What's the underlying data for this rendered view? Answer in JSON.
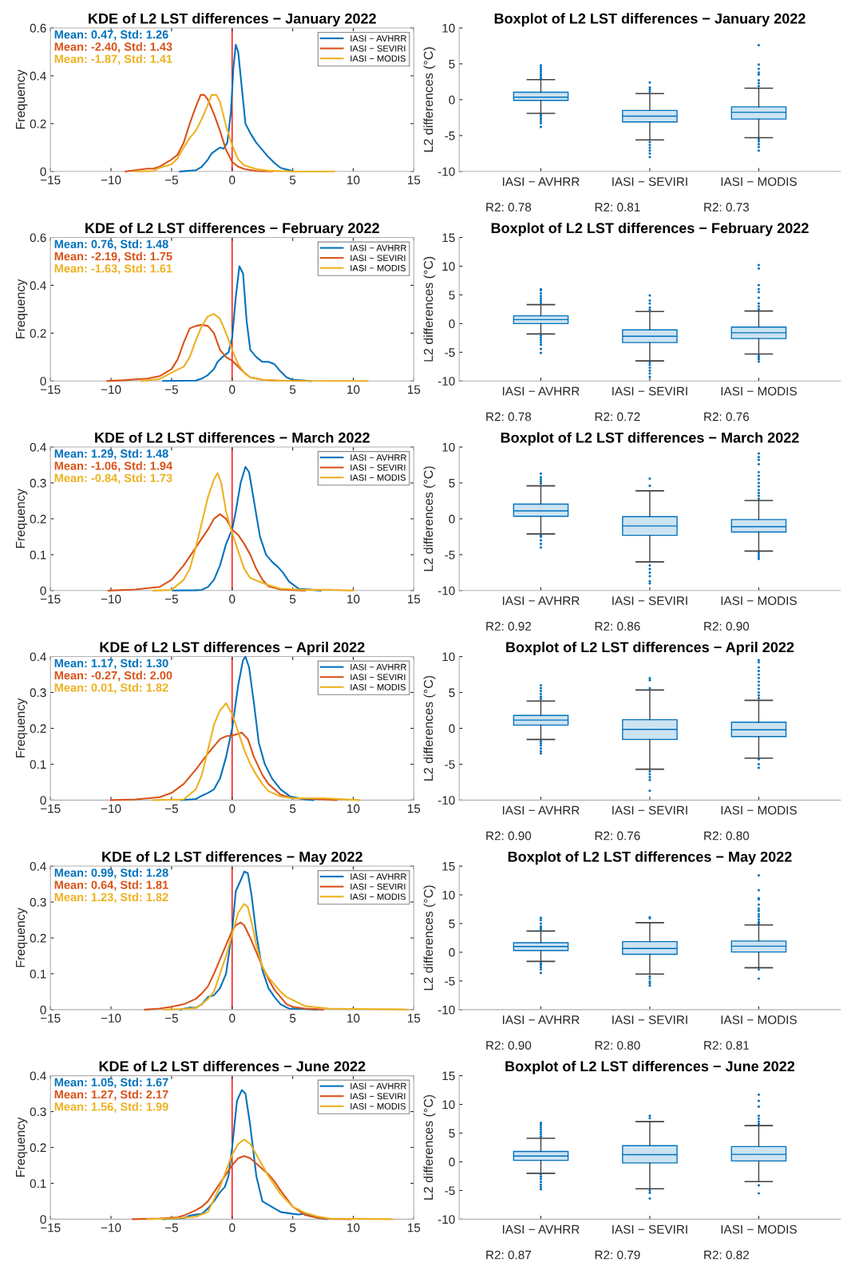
{
  "chart_data": [
    {
      "type": "line",
      "title": "KDE of L2 LST differences − January 2022",
      "ylabel": "Frequency",
      "xlim": [
        -15,
        15
      ],
      "xticks": [
        {
          "value": -15,
          "label": "−15"
        },
        {
          "value": -10,
          "label": "−10"
        },
        {
          "value": -5,
          "label": "−5"
        },
        0,
        5,
        10,
        15
      ],
      "ylim": [
        0,
        0.6
      ],
      "yticks": [
        0,
        0.2,
        0.4,
        0.6
      ],
      "legend": "top right",
      "ref_lines": [
        {
          "axis": "x",
          "value": 0,
          "color": "#ff0000"
        }
      ],
      "annotations": [
        "Mean: 0.47, Std: 1.26",
        "Mean: -2.40, Std: 1.43",
        "Mean: -1.87, Std: 1.41"
      ],
      "series": [
        {
          "name": "IASI − AVHRR",
          "color": "#0072bd",
          "x": [
            -4.3,
            -3,
            -2.5,
            -2,
            -1.7,
            -1.3,
            -1,
            -0.7,
            -0.4,
            -0.1,
            0.1,
            0.3,
            0.5,
            0.8,
            1.1,
            1.5,
            2,
            2.5,
            3,
            3.5,
            4,
            4.5,
            5
          ],
          "values": [
            0,
            0.005,
            0.02,
            0.05,
            0.075,
            0.09,
            0.1,
            0.095,
            0.12,
            0.25,
            0.43,
            0.53,
            0.5,
            0.35,
            0.2,
            0.16,
            0.12,
            0.09,
            0.06,
            0.035,
            0.015,
            0.008,
            0.002
          ]
        },
        {
          "name": "IASI − SEVIRI",
          "color": "#d95319",
          "x": [
            -8.8,
            -8,
            -7,
            -6.5,
            -6,
            -5,
            -4.5,
            -4,
            -3.5,
            -3,
            -2.6,
            -2.3,
            -2,
            -1.5,
            -1,
            -0.5,
            0,
            0.5,
            1,
            2,
            3.3
          ],
          "values": [
            0,
            0.005,
            0.012,
            0.012,
            0.02,
            0.05,
            0.07,
            0.12,
            0.2,
            0.27,
            0.32,
            0.32,
            0.3,
            0.24,
            0.17,
            0.09,
            0.04,
            0.02,
            0.01,
            0.002,
            0
          ]
        },
        {
          "name": "IASI − MODIS",
          "color": "#edb120",
          "x": [
            -8,
            -6.5,
            -6,
            -5,
            -4.5,
            -4,
            -3.5,
            -3,
            -2.5,
            -2,
            -1.7,
            -1.3,
            -1,
            -0.5,
            0,
            0.5,
            1,
            2,
            3,
            5,
            8.4
          ],
          "values": [
            0,
            0.002,
            0.015,
            0.03,
            0.055,
            0.1,
            0.14,
            0.17,
            0.22,
            0.28,
            0.32,
            0.32,
            0.29,
            0.19,
            0.11,
            0.05,
            0.025,
            0.01,
            0.003,
            0,
            0
          ]
        }
      ]
    },
    {
      "type": "box",
      "title": "Boxplot of L2 LST differences − January 2022",
      "ylabel": "L2 differences (°C)",
      "categories": [
        "IASI − AVHRR",
        "IASI − SEVIRI",
        "IASI − MODIS"
      ],
      "ylim": [
        -10,
        10
      ],
      "yticks": [
        -10,
        -5,
        0,
        5,
        10
      ],
      "annotations": [
        "R2: 0.78",
        "R2: 0.81",
        "R2: 0.73"
      ],
      "series": [
        {
          "color": "#0072bd",
          "boxes": [
            {
              "low": -1.9,
              "q1": -0.1,
              "median": 0.35,
              "q3": 1.05,
              "high": 2.8,
              "outliers": [
                3.0,
                3.3,
                3.6,
                3.9,
                4.2,
                4.5,
                4.8,
                -2.1,
                -2.4,
                -2.7,
                -3.0,
                -3.3,
                -3.8
              ]
            },
            {
              "low": -5.6,
              "q1": -3.1,
              "median": -2.3,
              "q3": -1.5,
              "high": 0.85,
              "outliers": [
                1.1,
                1.4,
                1.7,
                2.4,
                -5.9,
                -6.3,
                -6.7,
                -7.1,
                -7.5,
                -8.0
              ]
            },
            {
              "low": -5.3,
              "q1": -2.7,
              "median": -1.75,
              "q3": -1.0,
              "high": 1.6,
              "outliers": [
                1.9,
                2.3,
                2.7,
                3.5,
                3.8,
                4.3,
                4.9,
                7.6,
                -5.5,
                -5.8,
                -6.2,
                -6.6,
                -7.1
              ]
            }
          ]
        }
      ]
    },
    {
      "type": "line",
      "title": "KDE of L2 LST differences − February 2022",
      "ylabel": "Frequency",
      "xlim": [
        -15,
        15
      ],
      "xticks": [
        {
          "value": -15,
          "label": "−15"
        },
        {
          "value": -10,
          "label": "−10"
        },
        {
          "value": -5,
          "label": "−5"
        },
        0,
        5,
        10,
        15
      ],
      "ylim": [
        0,
        0.6
      ],
      "yticks": [
        0,
        0.2,
        0.4,
        0.6
      ],
      "legend": "top right",
      "ref_lines": [
        {
          "axis": "x",
          "value": 0,
          "color": "#ff0000"
        }
      ],
      "annotations": [
        "Mean: 0.76, Std: 1.48",
        "Mean: -2.19, Std: 1.75",
        "Mean: -1.63, Std: 1.61"
      ],
      "series": [
        {
          "name": "IASI − AVHRR",
          "color": "#0072bd",
          "x": [
            -5.7,
            -3,
            -2.5,
            -2,
            -1.5,
            -1.2,
            -0.8,
            -0.3,
            0,
            0.3,
            0.6,
            0.9,
            1.2,
            1.5,
            2,
            2.5,
            3,
            3.5,
            4,
            4.5,
            5,
            6.5
          ],
          "values": [
            0,
            0.002,
            0.01,
            0.025,
            0.05,
            0.08,
            0.1,
            0.12,
            0.18,
            0.35,
            0.48,
            0.45,
            0.25,
            0.13,
            0.1,
            0.08,
            0.08,
            0.07,
            0.04,
            0.015,
            0.005,
            0
          ]
        },
        {
          "name": "IASI − SEVIRI",
          "color": "#d95319",
          "x": [
            -10.3,
            -9,
            -7,
            -6,
            -5,
            -4.5,
            -4,
            -3.5,
            -3,
            -2.5,
            -2,
            -1.5,
            -1,
            -0.5,
            0,
            0.5,
            1,
            1.5,
            2.5,
            4,
            6
          ],
          "values": [
            0,
            0.003,
            0.01,
            0.02,
            0.05,
            0.09,
            0.16,
            0.22,
            0.23,
            0.235,
            0.23,
            0.2,
            0.13,
            0.1,
            0.085,
            0.06,
            0.035,
            0.015,
            0.005,
            0.001,
            0
          ]
        },
        {
          "name": "IASI − MODIS",
          "color": "#edb120",
          "x": [
            -7.5,
            -6,
            -5,
            -4,
            -3.5,
            -3,
            -2.5,
            -2,
            -1.5,
            -1,
            -0.5,
            0,
            0.5,
            1,
            1.5,
            2.5,
            4,
            11.2
          ],
          "values": [
            0,
            0.008,
            0.035,
            0.06,
            0.1,
            0.17,
            0.23,
            0.27,
            0.28,
            0.26,
            0.2,
            0.13,
            0.07,
            0.035,
            0.015,
            0.005,
            0.001,
            0
          ]
        }
      ]
    },
    {
      "type": "box",
      "title": "Boxplot of L2 LST differences − February 2022",
      "ylabel": "L2 differences (°C)",
      "categories": [
        "IASI − AVHRR",
        "IASI − SEVIRI",
        "IASI − MODIS"
      ],
      "ylim": [
        -10,
        15
      ],
      "yticks": [
        -10,
        -5,
        0,
        5,
        10,
        15
      ],
      "annotations": [
        "R2: 0.78",
        "R2: 0.72",
        "R2: 0.76"
      ],
      "series": [
        {
          "color": "#0072bd",
          "boxes": [
            {
              "low": -1.8,
              "q1": 0,
              "median": 0.7,
              "q3": 1.35,
              "high": 3.3,
              "outliers": [
                3.6,
                4.0,
                4.4,
                4.8,
                5.3,
                5.8,
                6.0,
                -2.1,
                -2.5,
                -2.9,
                -3.3,
                -3.7,
                -4.4,
                -5.1
              ]
            },
            {
              "low": -6.5,
              "q1": -3.3,
              "median": -2.2,
              "q3": -1.1,
              "high": 2.1,
              "outliers": [
                2.4,
                2.8,
                3.5,
                4.0,
                4.9,
                -6.8,
                -7.2,
                -7.7,
                -8.2,
                -8.7,
                -9.3
              ]
            },
            {
              "low": -5.3,
              "q1": -2.6,
              "median": -1.6,
              "q3": -0.6,
              "high": 2.2,
              "outliers": [
                2.5,
                3.0,
                3.5,
                4.5,
                5.5,
                6.0,
                6.7,
                9.6,
                10.2,
                -5.6,
                -5.9,
                -6.2,
                -6.6
              ]
            }
          ]
        }
      ]
    },
    {
      "type": "line",
      "title": "KDE of L2 LST differences − March 2022",
      "ylabel": "Frequency",
      "xlim": [
        -15,
        15
      ],
      "xticks": [
        {
          "value": -15,
          "label": "−15"
        },
        {
          "value": -10,
          "label": "−10"
        },
        {
          "value": -5,
          "label": "−5"
        },
        0,
        5,
        10,
        15
      ],
      "ylim": [
        0,
        0.4
      ],
      "yticks": [
        0,
        0.1,
        0.2,
        0.3,
        0.4
      ],
      "legend": "top right",
      "ref_lines": [
        {
          "axis": "x",
          "value": 0,
          "color": "#ff0000"
        }
      ],
      "annotations": [
        "Mean: 1.29, Std: 1.48",
        "Mean: -1.06, Std: 1.94",
        "Mean: -0.84, Std: 1.73"
      ],
      "series": [
        {
          "name": "IASI − AVHRR",
          "color": "#0072bd",
          "x": [
            -4.9,
            -3,
            -2.5,
            -2,
            -1.5,
            -1,
            -0.5,
            0,
            0.3,
            0.7,
            1.1,
            1.4,
            1.8,
            2.3,
            2.8,
            3.3,
            3.8,
            4.2,
            4.7,
            5.5,
            7.3
          ],
          "values": [
            0,
            0.001,
            0.002,
            0.01,
            0.03,
            0.07,
            0.13,
            0.17,
            0.22,
            0.3,
            0.345,
            0.33,
            0.25,
            0.15,
            0.1,
            0.08,
            0.065,
            0.05,
            0.025,
            0.005,
            0
          ]
        },
        {
          "name": "IASI − SEVIRI",
          "color": "#d95319",
          "x": [
            -10.2,
            -8,
            -6,
            -5,
            -4,
            -3,
            -2,
            -1.5,
            -1,
            -0.5,
            0,
            0.5,
            1,
            1.5,
            2,
            2.5,
            3,
            4,
            6
          ],
          "values": [
            0,
            0.003,
            0.01,
            0.03,
            0.07,
            0.12,
            0.17,
            0.2,
            0.213,
            0.2,
            0.17,
            0.155,
            0.13,
            0.1,
            0.06,
            0.03,
            0.012,
            0.003,
            0
          ]
        },
        {
          "name": "IASI − MODIS",
          "color": "#edb120",
          "x": [
            -6.5,
            -5,
            -4,
            -3.5,
            -3,
            -2.5,
            -2,
            -1.5,
            -1.2,
            -0.9,
            -0.5,
            0,
            0.5,
            1,
            1.5,
            2,
            3,
            4,
            6,
            8.3,
            10
          ],
          "values": [
            0,
            0.002,
            0.03,
            0.06,
            0.12,
            0.19,
            0.26,
            0.31,
            0.327,
            0.3,
            0.22,
            0.16,
            0.11,
            0.06,
            0.035,
            0.028,
            0.015,
            0.005,
            0.002,
            0.002,
            0
          ]
        }
      ]
    },
    {
      "type": "box",
      "title": "Boxplot of L2 LST differences − March 2022",
      "ylabel": "L2 differences (°C)",
      "categories": [
        "IASI − AVHRR",
        "IASI − SEVIRI",
        "IASI − MODIS"
      ],
      "ylim": [
        -10,
        10
      ],
      "yticks": [
        -10,
        -5,
        0,
        5,
        10
      ],
      "annotations": [
        "R2: 0.92",
        "R2: 0.86",
        "R2: 0.90"
      ],
      "series": [
        {
          "color": "#0072bd",
          "boxes": [
            {
              "low": -2.1,
              "q1": 0.35,
              "median": 1.1,
              "q3": 2.05,
              "high": 4.6,
              "outliers": [
                4.9,
                5.2,
                5.5,
                5.8,
                6.3,
                -2.3,
                -2.5,
                -3.0,
                -3.5,
                -4.0
              ]
            },
            {
              "low": -6.0,
              "q1": -2.3,
              "median": -1.0,
              "q3": 0.3,
              "high": 3.9,
              "outliers": [
                4.6,
                5.6,
                -6.5,
                -7.0,
                -7.5,
                -8.0,
                -8.7,
                -9.0
              ]
            },
            {
              "low": -4.5,
              "q1": -1.85,
              "median": -1.1,
              "q3": -0.1,
              "high": 2.55,
              "outliers": [
                2.8,
                3.2,
                3.6,
                4.0,
                4.5,
                5.0,
                5.5,
                6.0,
                6.5,
                7.6,
                8.2,
                8.6,
                9.1,
                -4.7,
                -5.0,
                -5.3,
                -5.6
              ]
            }
          ]
        }
      ]
    },
    {
      "type": "line",
      "title": "KDE of L2 LST differences − April 2022",
      "ylabel": "Frequency",
      "xlim": [
        -15,
        15
      ],
      "xticks": [
        {
          "value": -15,
          "label": "−15"
        },
        {
          "value": -10,
          "label": "−10"
        },
        {
          "value": -5,
          "label": "−5"
        },
        0,
        5,
        10,
        15
      ],
      "ylim": [
        0,
        0.4
      ],
      "yticks": [
        0,
        0.1,
        0.2,
        0.3,
        0.4
      ],
      "legend": "top right",
      "ref_lines": [
        {
          "axis": "x",
          "value": 0,
          "color": "#ff0000"
        }
      ],
      "annotations": [
        "Mean: 1.17, Std: 1.30",
        "Mean: -0.27, Std: 2.00",
        "Mean: 0.01, Std: 1.82"
      ],
      "series": [
        {
          "name": "IASI − AVHRR",
          "color": "#0072bd",
          "x": [
            -4.2,
            -3,
            -2.5,
            -2,
            -1.5,
            -1,
            -0.5,
            0,
            0.5,
            0.9,
            1.1,
            1.4,
            1.8,
            2.2,
            2.7,
            3.3,
            4,
            4.8,
            6,
            6.7
          ],
          "values": [
            0,
            0.003,
            0.012,
            0.02,
            0.03,
            0.06,
            0.12,
            0.2,
            0.32,
            0.39,
            0.4,
            0.37,
            0.27,
            0.16,
            0.1,
            0.06,
            0.03,
            0.01,
            0.002,
            0
          ]
        },
        {
          "name": "IASI − SEVIRI",
          "color": "#d95319",
          "x": [
            -10,
            -8,
            -6,
            -5,
            -4,
            -3,
            -2,
            -1,
            -0.5,
            0,
            0.5,
            0.8,
            1.3,
            1.8,
            2.5,
            3,
            4,
            5,
            7,
            8.6
          ],
          "values": [
            0,
            0.002,
            0.008,
            0.02,
            0.045,
            0.085,
            0.13,
            0.17,
            0.178,
            0.18,
            0.185,
            0.188,
            0.17,
            0.12,
            0.07,
            0.045,
            0.015,
            0.005,
            0.003,
            0
          ]
        },
        {
          "name": "IASI − MODIS",
          "color": "#edb120",
          "x": [
            -6.5,
            -4,
            -3,
            -2.5,
            -2,
            -1.5,
            -1,
            -0.5,
            0,
            0.5,
            1,
            1.5,
            2,
            2.5,
            3,
            4,
            5,
            7.5,
            10.5
          ],
          "values": [
            0,
            0.002,
            0.03,
            0.07,
            0.14,
            0.21,
            0.25,
            0.27,
            0.24,
            0.19,
            0.14,
            0.1,
            0.07,
            0.045,
            0.025,
            0.01,
            0.005,
            0.005,
            0
          ]
        }
      ]
    },
    {
      "type": "box",
      "title": "Boxplot of L2 LST differences − April 2022",
      "ylabel": "L2 differences (°C)",
      "categories": [
        "IASI − AVHRR",
        "IASI − SEVIRI",
        "IASI − MODIS"
      ],
      "ylim": [
        -10,
        10
      ],
      "yticks": [
        -10,
        -5,
        0,
        5,
        10
      ],
      "annotations": [
        "R2: 0.90",
        "R2: 0.76",
        "R2: 0.80"
      ],
      "series": [
        {
          "color": "#0072bd",
          "boxes": [
            {
              "low": -1.55,
              "q1": 0.45,
              "median": 1.15,
              "q3": 1.8,
              "high": 3.8,
              "outliers": [
                4.1,
                4.4,
                4.8,
                5.2,
                5.6,
                6.0,
                -1.8,
                -2.1,
                -2.4,
                -2.8,
                -3.2,
                -3.5
              ]
            },
            {
              "low": -5.7,
              "q1": -1.55,
              "median": -0.15,
              "q3": 1.2,
              "high": 5.35,
              "outliers": [
                5.6,
                6.7,
                7.0,
                -6.0,
                -6.4,
                -6.8,
                -7.2,
                -8.7
              ]
            },
            {
              "low": -4.15,
              "q1": -1.15,
              "median": -0.2,
              "q3": 0.85,
              "high": 3.9,
              "outliers": [
                4.2,
                4.6,
                5.0,
                5.5,
                6.0,
                6.5,
                7.0,
                7.5,
                8.0,
                8.5,
                9.2,
                9.5,
                -4.3,
                -5.0,
                -5.5
              ]
            }
          ]
        }
      ]
    },
    {
      "type": "line",
      "title": "KDE of L2 LST differences − May 2022",
      "ylabel": "Frequency",
      "xlim": [
        -15,
        15
      ],
      "xticks": [
        {
          "value": -15,
          "label": "−15"
        },
        {
          "value": -10,
          "label": "−10"
        },
        {
          "value": -5,
          "label": "−5"
        },
        0,
        5,
        10,
        15
      ],
      "ylim": [
        0,
        0.4
      ],
      "yticks": [
        0,
        0.1,
        0.2,
        0.3,
        0.4
      ],
      "legend": "top right",
      "ref_lines": [
        {
          "axis": "x",
          "value": 0,
          "color": "#ff0000"
        }
      ],
      "annotations": [
        "Mean: 0.99, Std: 1.28",
        "Mean: 0.64, Std: 1.81",
        "Mean: 1.23, Std: 1.82"
      ],
      "series": [
        {
          "name": "IASI − AVHRR",
          "color": "#0072bd",
          "x": [
            -4.3,
            -3.5,
            -3,
            -2.5,
            -2,
            -1.5,
            -1,
            -0.5,
            0,
            0.3,
            0.7,
            1,
            1.3,
            1.6,
            2,
            2.5,
            3,
            3.5,
            4,
            4.7,
            6,
            7
          ],
          "values": [
            0,
            0.006,
            0.005,
            0.015,
            0.035,
            0.04,
            0.06,
            0.1,
            0.22,
            0.33,
            0.36,
            0.385,
            0.38,
            0.32,
            0.21,
            0.11,
            0.06,
            0.035,
            0.015,
            0.003,
            0.002,
            0
          ]
        },
        {
          "name": "IASI − SEVIRI",
          "color": "#d95319",
          "x": [
            -7.2,
            -6,
            -5,
            -4,
            -3,
            -2.5,
            -2,
            -1.5,
            -1,
            -0.5,
            0,
            0.3,
            0.7,
            1,
            1.5,
            2,
            2.5,
            3,
            3.5,
            4,
            4.5,
            5,
            6,
            7.5
          ],
          "values": [
            0,
            0.003,
            0.008,
            0.015,
            0.03,
            0.045,
            0.065,
            0.1,
            0.14,
            0.18,
            0.22,
            0.235,
            0.243,
            0.235,
            0.2,
            0.16,
            0.12,
            0.085,
            0.055,
            0.035,
            0.015,
            0.008,
            0.003,
            0
          ]
        },
        {
          "name": "IASI − MODIS",
          "color": "#edb120",
          "x": [
            -5.6,
            -4,
            -3,
            -2.5,
            -2,
            -1.5,
            -1,
            -0.5,
            0,
            0.5,
            1,
            1.3,
            1.7,
            2,
            2.5,
            3,
            3.5,
            4,
            4.5,
            5,
            6,
            8,
            10,
            13.5,
            14.5
          ],
          "values": [
            0,
            0.002,
            0.005,
            0.015,
            0.03,
            0.05,
            0.1,
            0.15,
            0.21,
            0.27,
            0.295,
            0.285,
            0.23,
            0.18,
            0.12,
            0.09,
            0.07,
            0.05,
            0.035,
            0.027,
            0.01,
            0.003,
            0.002,
            0.001,
            0
          ]
        }
      ]
    },
    {
      "type": "box",
      "title": "Boxplot of L2 LST differences − May 2022",
      "ylabel": "L2 differences (°C)",
      "categories": [
        "IASI − AVHRR",
        "IASI − SEVIRI",
        "IASI − MODIS"
      ],
      "ylim": [
        -10,
        15
      ],
      "yticks": [
        -10,
        -5,
        0,
        5,
        10,
        15
      ],
      "annotations": [
        "R2: 0.90",
        "R2: 0.80",
        "R2: 0.81"
      ],
      "series": [
        {
          "color": "#0072bd",
          "boxes": [
            {
              "low": -1.6,
              "q1": 0.3,
              "median": 1.0,
              "q3": 1.65,
              "high": 3.7,
              "outliers": [
                3.9,
                4.2,
                4.5,
                5.0,
                5.6,
                6.0,
                -1.9,
                -2.2,
                -2.6,
                -3.0,
                -3.6
              ]
            },
            {
              "low": -3.8,
              "q1": -0.35,
              "median": 0.65,
              "q3": 1.85,
              "high": 5.15,
              "outliers": [
                5.9,
                6.1,
                -4.2,
                -4.6,
                -5.1,
                -5.4,
                -5.8
              ]
            },
            {
              "low": -2.7,
              "q1": 0.05,
              "median": 1.05,
              "q3": 1.95,
              "high": 4.75,
              "outliers": [
                5.0,
                5.3,
                5.7,
                6.2,
                6.6,
                7.2,
                7.6,
                8.3,
                9.2,
                9.4,
                10.8,
                13.4,
                -3.0,
                -4.6
              ]
            }
          ]
        }
      ]
    },
    {
      "type": "line",
      "title": "KDE of L2 LST differences − June 2022",
      "ylabel": "Frequency",
      "xlim": [
        -15,
        15
      ],
      "xticks": [
        {
          "value": -15,
          "label": "−15"
        },
        {
          "value": -10,
          "label": "−10"
        },
        {
          "value": -5,
          "label": "−5"
        },
        0,
        5,
        10,
        15
      ],
      "ylim": [
        0,
        0.4
      ],
      "yticks": [
        0,
        0.1,
        0.2,
        0.3,
        0.4
      ],
      "legend": "top right",
      "ref_lines": [
        {
          "axis": "x",
          "value": 0,
          "color": "#ff0000"
        }
      ],
      "annotations": [
        "Mean: 1.05, Std: 1.67",
        "Mean: 1.27, Std: 2.17",
        "Mean: 1.56, Std: 1.99"
      ],
      "series": [
        {
          "name": "IASI − AVHRR",
          "color": "#0072bd",
          "x": [
            -5.7,
            -4,
            -3.5,
            -2.5,
            -2,
            -1.5,
            -1,
            -0.6,
            -0.3,
            0,
            0.4,
            0.8,
            1.1,
            1.5,
            2,
            2.5,
            3,
            3.5,
            4,
            5,
            5.5,
            6,
            7,
            7.8
          ],
          "values": [
            0,
            0.003,
            0.01,
            0.015,
            0.03,
            0.05,
            0.075,
            0.09,
            0.12,
            0.2,
            0.33,
            0.36,
            0.35,
            0.26,
            0.12,
            0.05,
            0.04,
            0.03,
            0.02,
            0.015,
            0.013,
            0.016,
            0.005,
            0
          ]
        },
        {
          "name": "IASI − SEVIRI",
          "color": "#d95319",
          "x": [
            -8.2,
            -6,
            -4.5,
            -4,
            -3,
            -2.5,
            -2,
            -1,
            0,
            0.5,
            1,
            1.5,
            2,
            3,
            3.5,
            4,
            5,
            6,
            7,
            8,
            9.8
          ],
          "values": [
            0,
            0.002,
            0.005,
            0.01,
            0.025,
            0.035,
            0.05,
            0.1,
            0.15,
            0.17,
            0.176,
            0.17,
            0.155,
            0.125,
            0.105,
            0.08,
            0.035,
            0.012,
            0.004,
            0.001,
            0
          ]
        },
        {
          "name": "IASI − MODIS",
          "color": "#edb120",
          "x": [
            -7,
            -5,
            -4,
            -3,
            -2,
            -1,
            0,
            0.5,
            1,
            1.5,
            2,
            3,
            4,
            5,
            6,
            7,
            8,
            10,
            13.2
          ],
          "values": [
            0,
            0.002,
            0.004,
            0.007,
            0.02,
            0.09,
            0.18,
            0.21,
            0.222,
            0.21,
            0.18,
            0.12,
            0.07,
            0.035,
            0.018,
            0.008,
            0.002,
            0.001,
            0
          ]
        }
      ]
    },
    {
      "type": "box",
      "title": "Boxplot of L2 LST differences − June 2022",
      "ylabel": "L2 differences (°C)",
      "categories": [
        "IASI − AVHRR",
        "IASI − SEVIRI",
        "IASI − MODIS"
      ],
      "ylim": [
        -10,
        15
      ],
      "yticks": [
        -10,
        -5,
        0,
        5,
        10,
        15
      ],
      "annotations": [
        "R2: 0.87",
        "R2: 0.79",
        "R2: 0.82"
      ],
      "series": [
        {
          "color": "#0072bd",
          "boxes": [
            {
              "low": -2.0,
              "q1": 0.25,
              "median": 1.0,
              "q3": 1.8,
              "high": 4.1,
              "outliers": [
                4.4,
                4.8,
                5.2,
                5.6,
                6.0,
                6.4,
                6.8,
                -2.2,
                -2.6,
                -3.0,
                -3.5,
                -4.0,
                -4.4,
                -4.8
              ]
            },
            {
              "low": -4.7,
              "q1": -0.2,
              "median": 1.25,
              "q3": 2.8,
              "high": 7.0,
              "outliers": [
                7.6,
                8.0,
                -5.0,
                -5.4,
                -6.4
              ]
            },
            {
              "low": -3.45,
              "q1": 0.15,
              "median": 1.3,
              "q3": 2.65,
              "high": 6.3,
              "outliers": [
                6.6,
                7.0,
                7.5,
                8.0,
                9.6,
                10.6,
                11.7,
                -4.1,
                -5.5
              ]
            }
          ]
        }
      ]
    }
  ]
}
